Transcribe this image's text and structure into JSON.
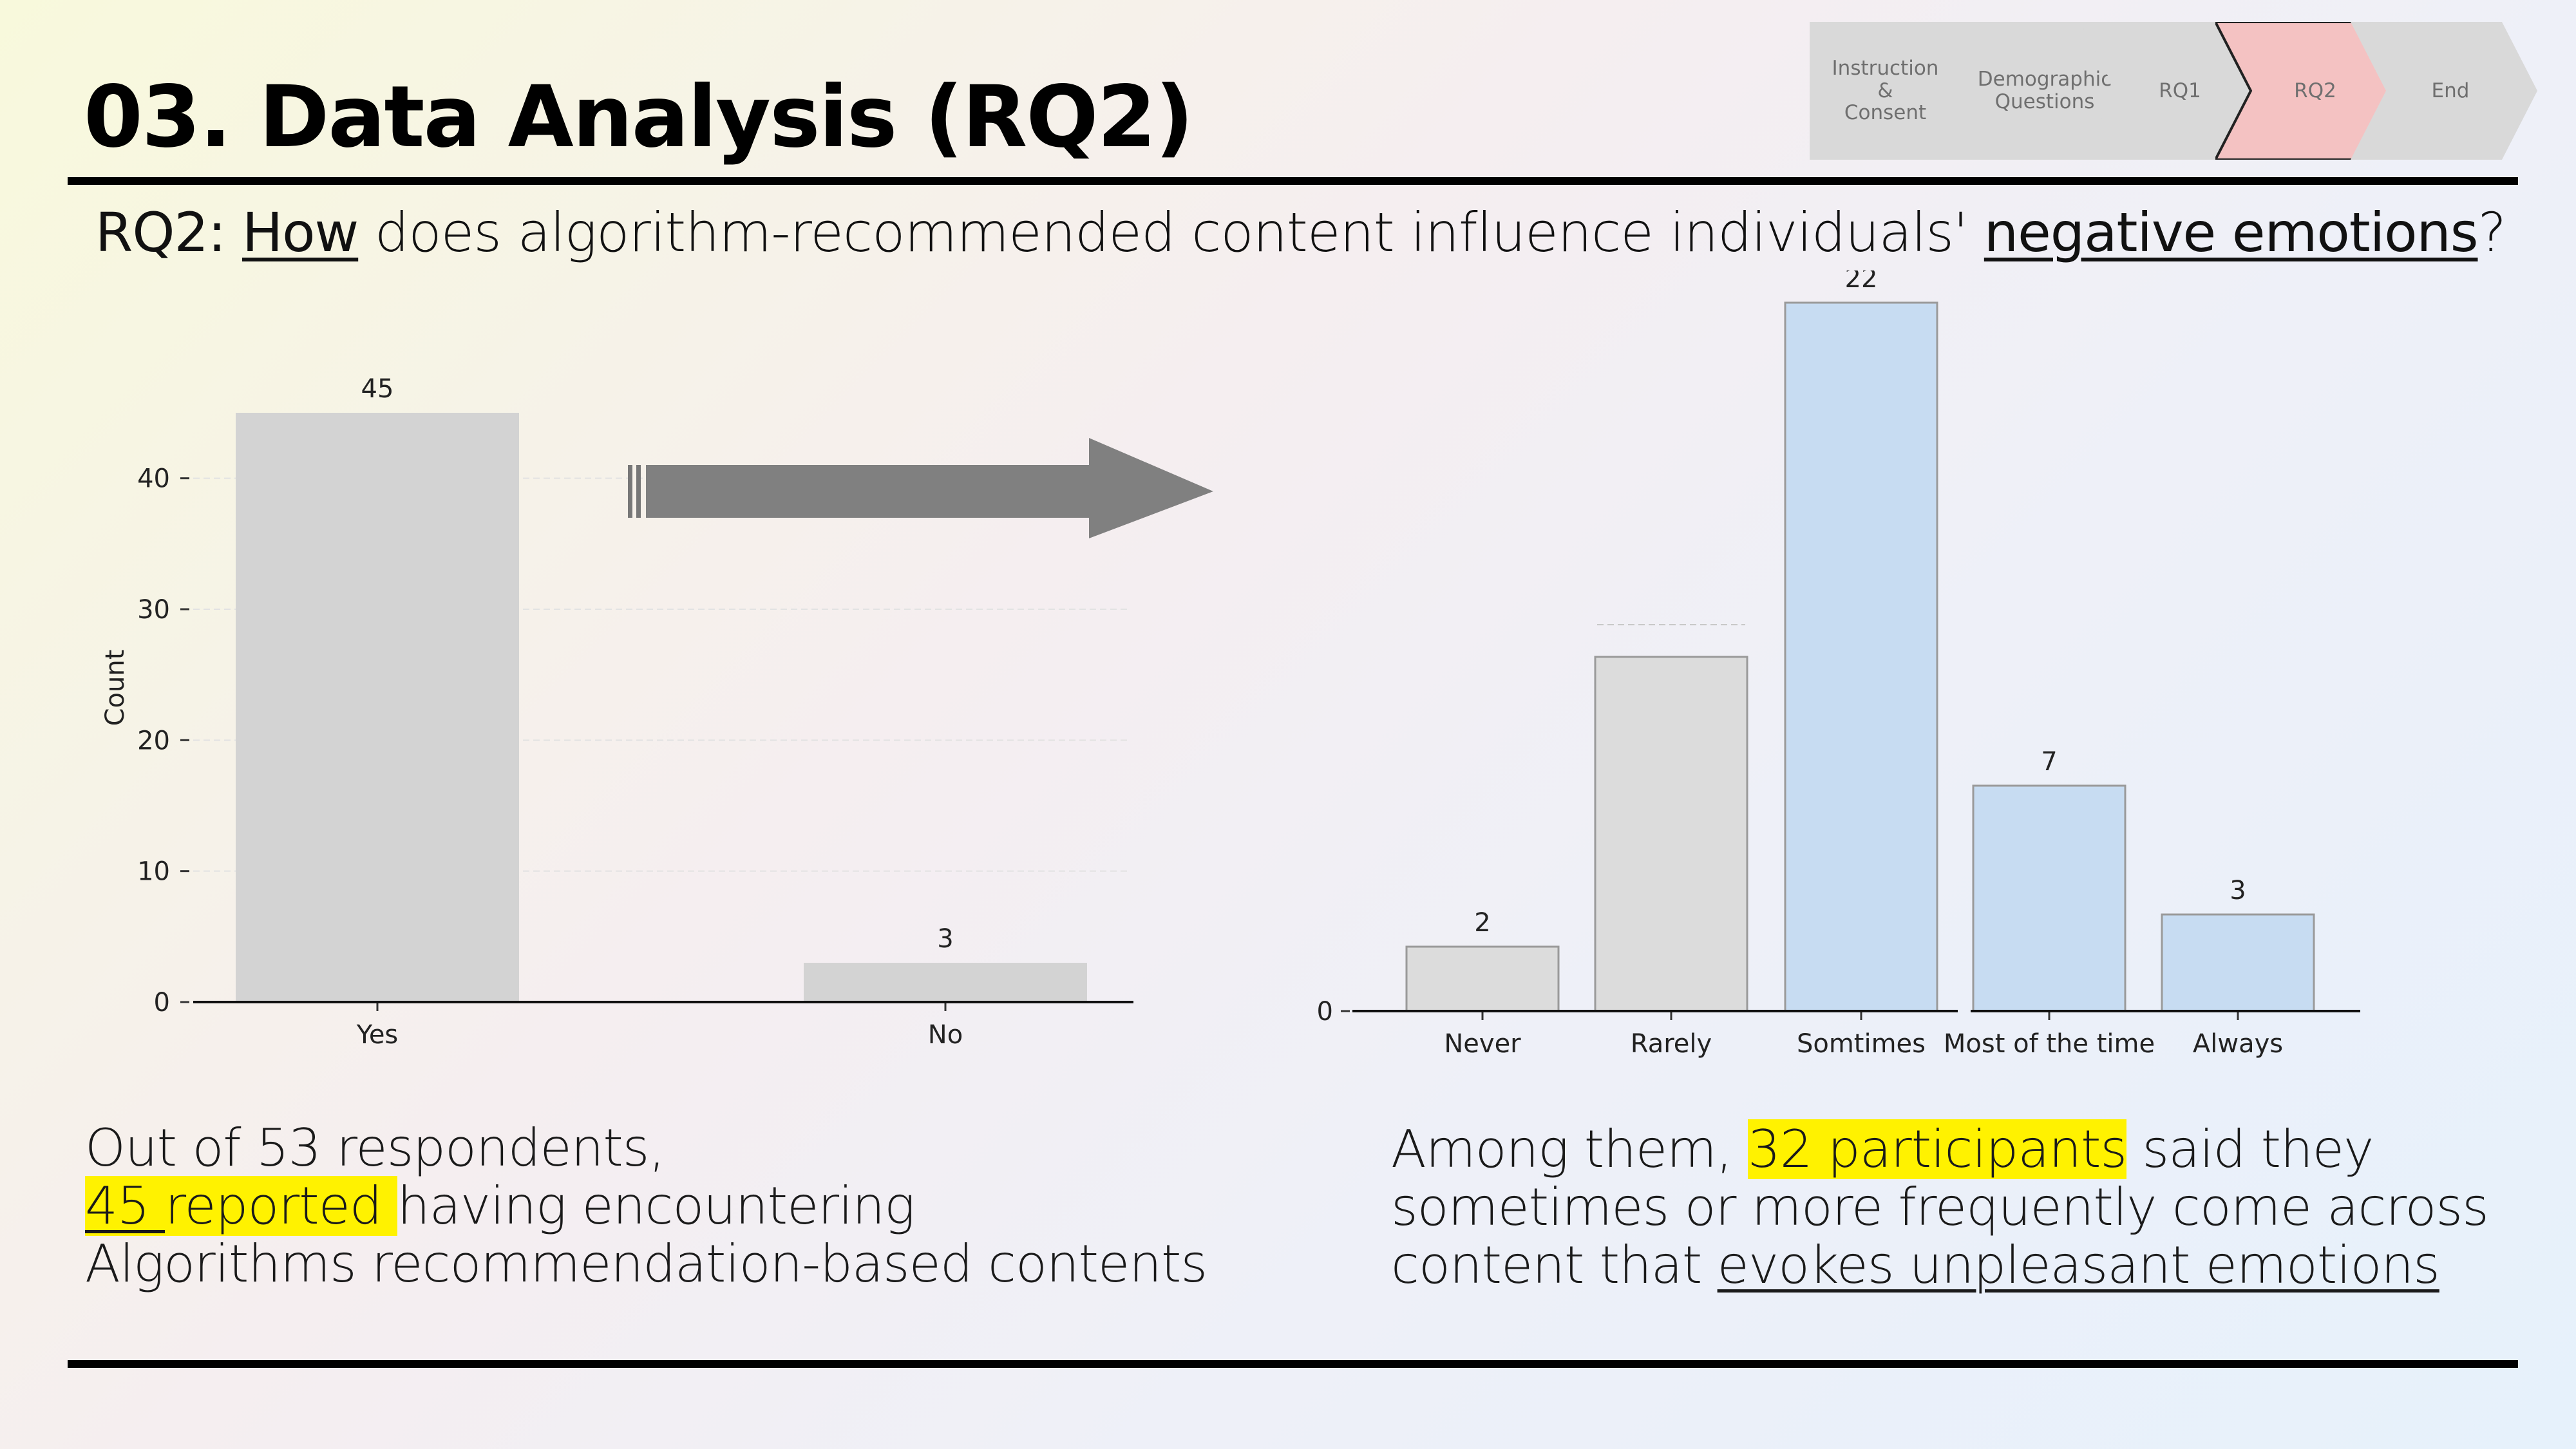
{
  "slide": {
    "title": "03. Data Analysis (RQ2)",
    "question": {
      "prefix": "RQ2: ",
      "how": "How",
      "middle": " does algorithm-recommended content influence individuals' ",
      "emphasis": "negative emotions",
      "suffix": "?"
    }
  },
  "breadcrumb": {
    "steps": [
      {
        "label": "Instruction\n&\nConsent",
        "active": false
      },
      {
        "label": "Demographic\nQuestions",
        "active": false
      },
      {
        "label": "RQ1",
        "active": false
      },
      {
        "label": "RQ2",
        "active": true
      },
      {
        "label": "End",
        "active": false
      }
    ],
    "colors": {
      "inactive": "#d9d9d9",
      "active": "#f4c2c2"
    }
  },
  "chart_data": [
    {
      "type": "bar",
      "categories": [
        "Yes",
        "No"
      ],
      "values": [
        45,
        3
      ],
      "ylabel": "Count",
      "xlabel": "",
      "ylim": [
        0,
        48
      ],
      "yticks": [
        0,
        10,
        20,
        30,
        40
      ],
      "grid": true,
      "colors": [
        "#d3d3d3",
        "#d3d3d3"
      ]
    },
    {
      "type": "bar",
      "categories": [
        "Never",
        "Rarely",
        "Somtimes",
        "Most of the time",
        "Always"
      ],
      "values": [
        2,
        11,
        22,
        7,
        3
      ],
      "data_labels": [
        "2",
        "",
        "22",
        "7",
        "3"
      ],
      "ylim": [
        0,
        22
      ],
      "yticks": [
        0
      ],
      "grid": true,
      "colors": [
        "#dcdcdc",
        "#dcdcdc",
        "#c7dcf2",
        "#c7dcf2",
        "#c7dcf2"
      ]
    }
  ],
  "captions": {
    "left": {
      "line1": "Out of 53 respondents,",
      "highlight_num": "45 ",
      "highlight_text": "reported ",
      "line2_rest": "having encountering",
      "line3": "Algorithms recommendation-based contents"
    },
    "right": {
      "line1_start": "Among them, ",
      "highlight": "32 participants",
      "line1_end": " said they",
      "line2": "sometimes or more frequently come across",
      "line3_start": "content that ",
      "line3_underline": "evokes unpleasant emotions"
    }
  }
}
